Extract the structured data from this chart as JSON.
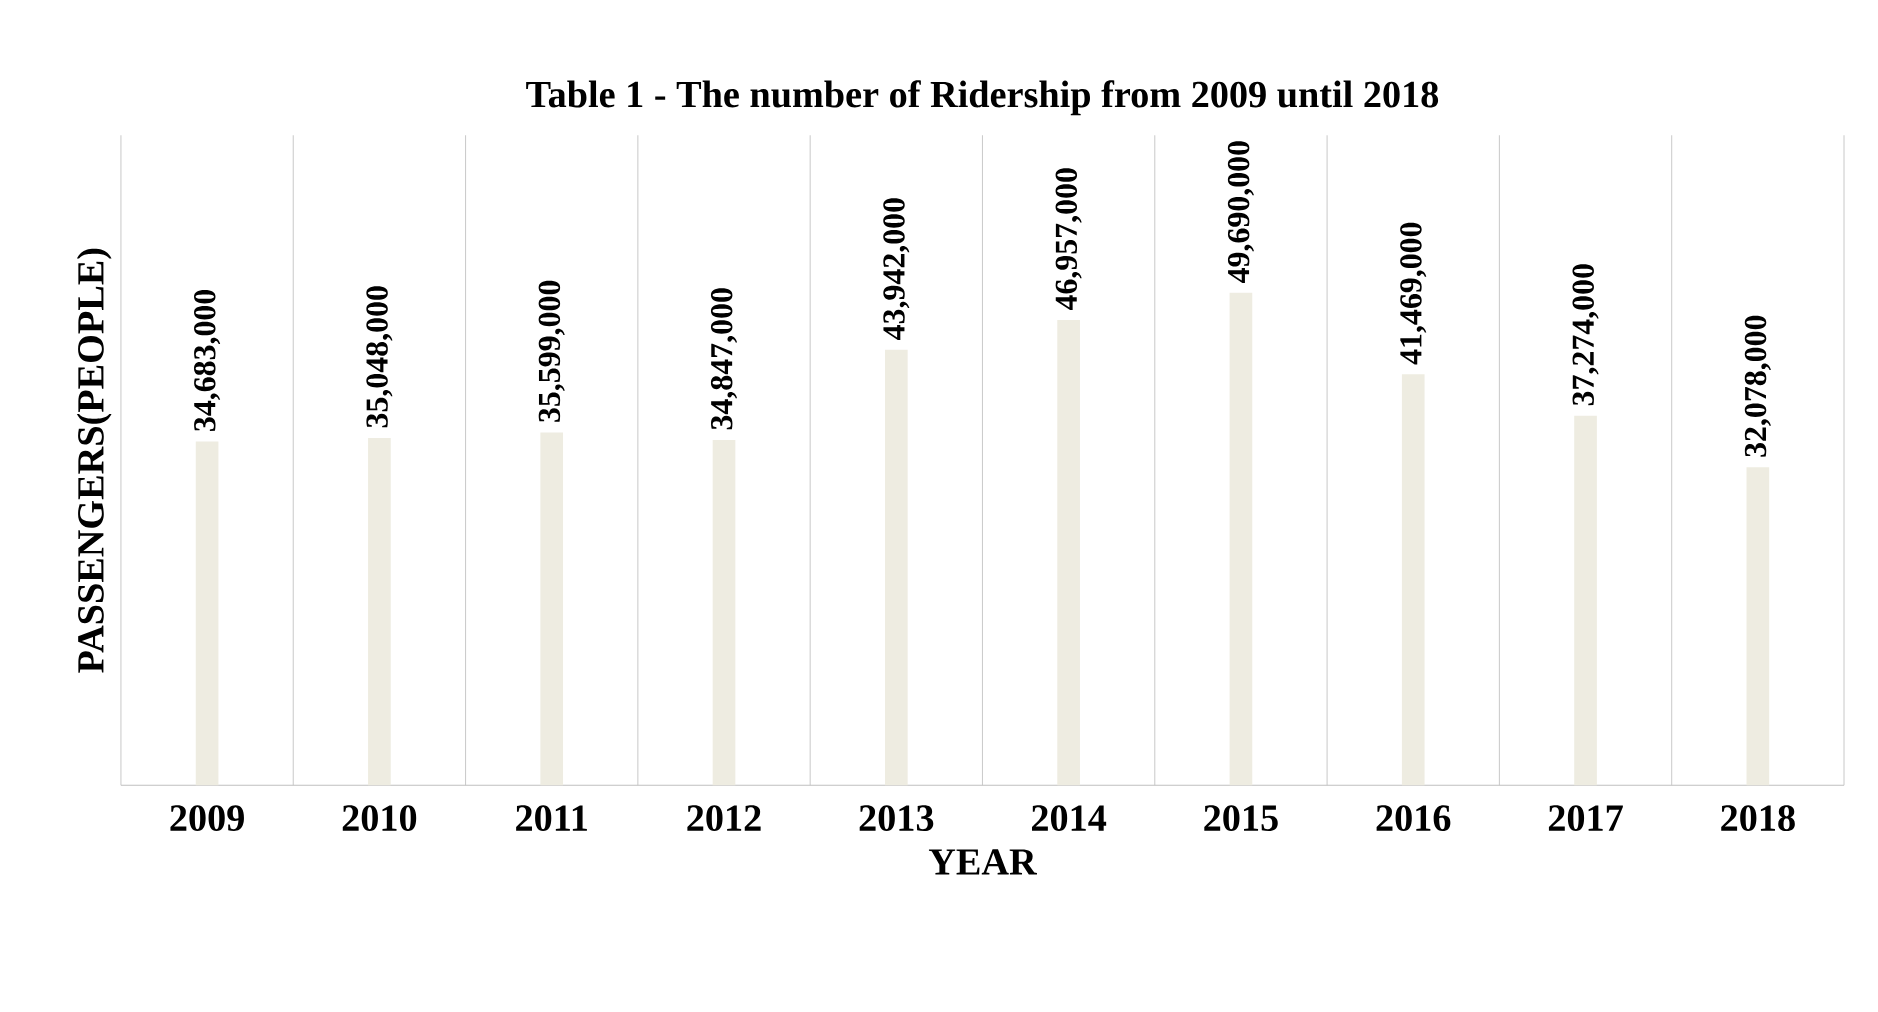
{
  "chart_data": {
    "type": "bar",
    "title": "Table 1 - The number of Ridership from 2009 until 2018",
    "xlabel": "YEAR",
    "ylabel": "PASSENGERS(PEOPLE)",
    "categories": [
      "2009",
      "2010",
      "2011",
      "2012",
      "2013",
      "2014",
      "2015",
      "2016",
      "2017",
      "2018"
    ],
    "values": [
      34683000,
      35048000,
      35599000,
      34847000,
      43942000,
      46957000,
      49690000,
      41469000,
      37274000,
      32078000
    ],
    "value_labels": [
      "34,683,000",
      "35,048,000",
      "35,599,000",
      "34,847,000",
      "43,942,000",
      "46,957,000",
      "49,690,000",
      "41,469,000",
      "37,274,000",
      "32,078,000"
    ],
    "color": "#eeece1",
    "grid": "x"
  }
}
